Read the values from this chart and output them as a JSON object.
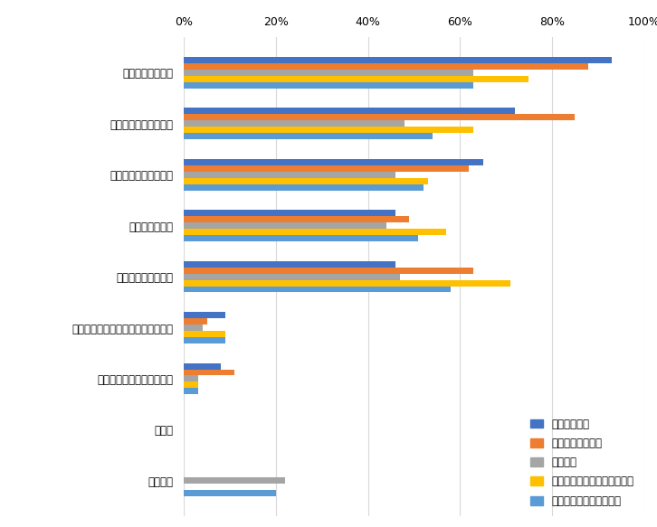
{
  "categories": [
    "テレワークの導入",
    "多様な勤務時間の導入",
    "柔軟な勤務制度の導入",
    "残業時間の削減",
    "有給休暇の消化促進",
    "会社裁量のみでの転勤の低減・廃止",
    "ワーケーション制度の導入",
    "その他",
    "特にない"
  ],
  "series": [
    {
      "name": "良化している",
      "color": "#4472C4",
      "values": [
        93,
        72,
        65,
        46,
        46,
        9,
        8,
        0,
        0
      ]
    },
    {
      "name": "やや良化している",
      "color": "#ED7D31",
      "values": [
        88,
        85,
        62,
        49,
        63,
        5,
        11,
        0,
        0
      ]
    },
    {
      "name": "変化なし",
      "color": "#A5A5A5",
      "values": [
        63,
        48,
        46,
        44,
        47,
        4,
        3,
        0,
        22
      ]
    },
    {
      "name": "悪化したが、回復傾向にある",
      "color": "#FFC000",
      "values": [
        75,
        63,
        53,
        57,
        71,
        9,
        3,
        0,
        0
      ]
    },
    {
      "name": "悪化し、回復していない",
      "color": "#5B9BD5",
      "values": [
        63,
        54,
        52,
        51,
        58,
        9,
        3,
        0,
        20
      ]
    }
  ],
  "xlim": [
    0,
    100
  ],
  "xticks": [
    0,
    20,
    40,
    60,
    80,
    100
  ],
  "xticklabels": [
    "0%",
    "20%",
    "40%",
    "60%",
    "80%",
    "100%"
  ],
  "background_color": "#FFFFFF",
  "grid_color": "#D9D9D9"
}
